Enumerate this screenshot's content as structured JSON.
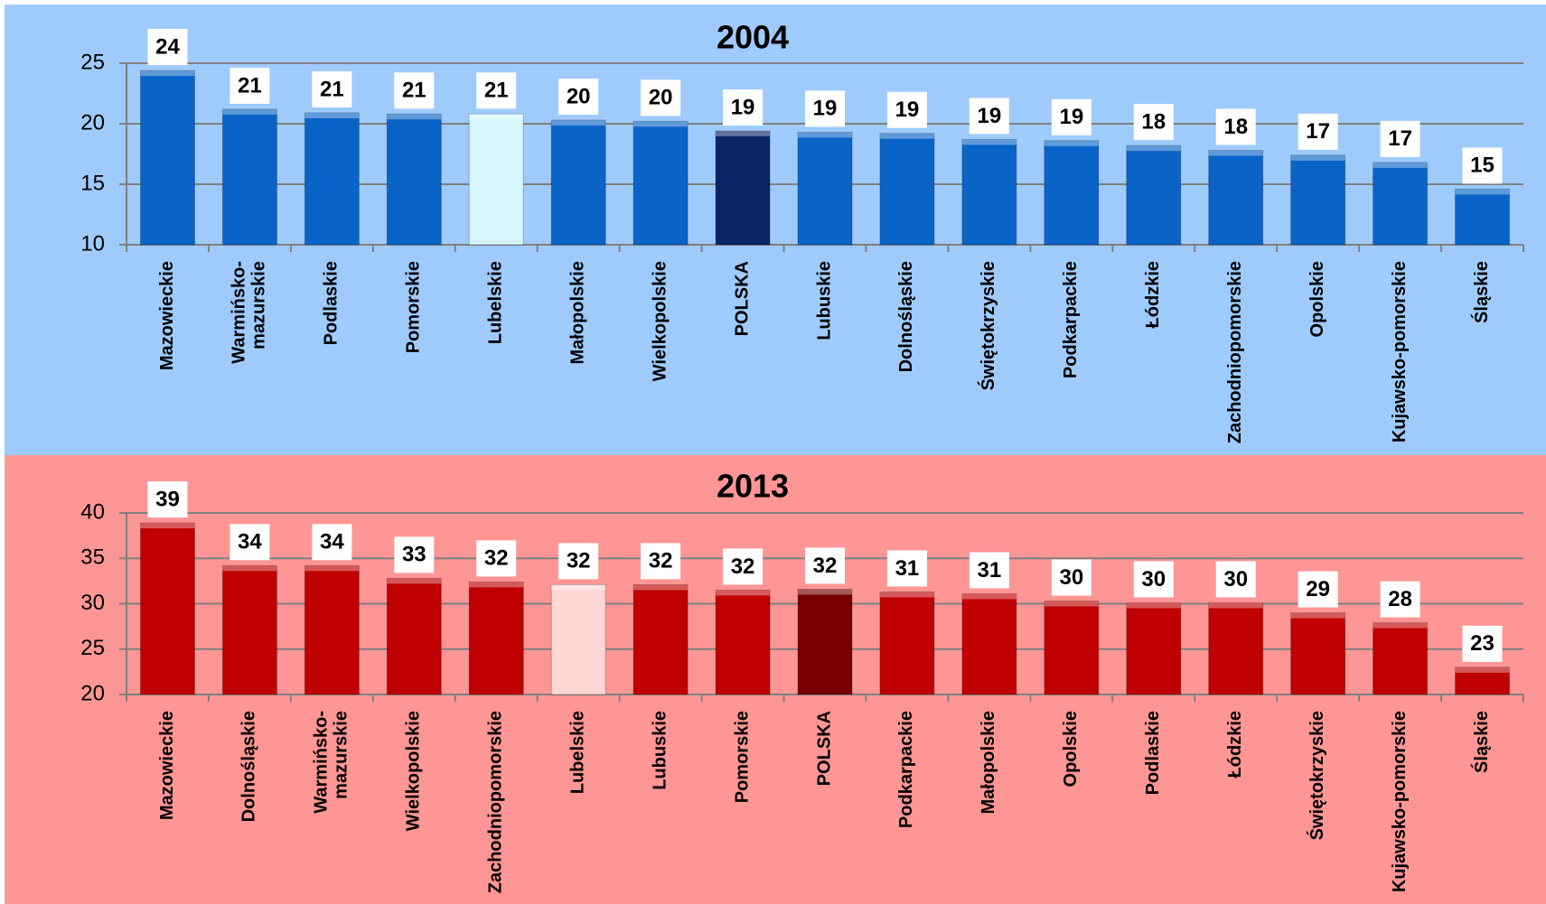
{
  "chart_data": [
    {
      "type": "bar",
      "title": "2004",
      "background": "#9fcbfc",
      "categories": [
        "Mazowieckie",
        "Warmińsko-\nmazurskie",
        "Podlaskie",
        "Pomorskie",
        "Lubelskie",
        "Małopolskie",
        "Wielkopolskie",
        "POLSKA",
        "Lubuskie",
        "Dolnośląskie",
        "Świętokrzyskie",
        "Podkarpackie",
        "Łódzkie",
        "Zachodniopomorskie",
        "Opolskie",
        "Kujawsko-pomorskie",
        "Śląskie"
      ],
      "values": [
        24.4,
        21.2,
        20.9,
        20.8,
        20.8,
        20.3,
        20.2,
        19.4,
        19.3,
        19.2,
        18.7,
        18.6,
        18.2,
        17.8,
        17.4,
        16.8,
        14.6
      ],
      "value_labels": [
        "24",
        "21",
        "21",
        "21",
        "21",
        "20",
        "20",
        "19",
        "19",
        "19",
        "19",
        "19",
        "18",
        "18",
        "17",
        "17",
        "15"
      ],
      "colors": [
        "#0a64c8",
        "#0a64c8",
        "#0a64c8",
        "#0a64c8",
        "#d6f6fb",
        "#0a64c8",
        "#0a64c8",
        "#0a2468",
        "#0a64c8",
        "#0a64c8",
        "#0a64c8",
        "#0a64c8",
        "#0a64c8",
        "#0a64c8",
        "#0a64c8",
        "#0a64c8",
        "#0a64c8"
      ],
      "ylim": [
        10,
        25
      ],
      "yticks": [
        10,
        15,
        20,
        25
      ],
      "grid": true
    },
    {
      "type": "bar",
      "title": "2013",
      "background": "#ff9696",
      "categories": [
        "Mazowieckie",
        "Dolnośląskie",
        "Warmińsko-\nmazurskie",
        "Wielkopolskie",
        "Zachodniopomorskie",
        "Lubelskie",
        "Lubuskie",
        "Pomorskie",
        "POLSKA",
        "Podkarpackie",
        "Małopolskie",
        "Opolskie",
        "Podlaskie",
        "Łódzkie",
        "Świętokrzyskie",
        "Kujawsko-pomorskie",
        "Śląskie"
      ],
      "values": [
        38.9,
        34.2,
        34.2,
        32.8,
        32.4,
        32.1,
        32.1,
        31.5,
        31.6,
        31.3,
        31.1,
        30.3,
        30.1,
        30.1,
        29.0,
        27.9,
        23.0
      ],
      "value_labels": [
        "39",
        "34",
        "34",
        "33",
        "32",
        "32",
        "32",
        "32",
        "32",
        "31",
        "31",
        "30",
        "30",
        "30",
        "29",
        "28",
        "23"
      ],
      "colors": [
        "#c00000",
        "#c00000",
        "#c00000",
        "#c00000",
        "#c00000",
        "#ffd6d6",
        "#c00000",
        "#c00000",
        "#780000",
        "#c00000",
        "#c00000",
        "#c00000",
        "#c00000",
        "#c00000",
        "#c00000",
        "#c00000",
        "#c00000"
      ],
      "ylim": [
        20,
        40
      ],
      "yticks": [
        20,
        25,
        30,
        35,
        40
      ],
      "grid": true
    }
  ]
}
